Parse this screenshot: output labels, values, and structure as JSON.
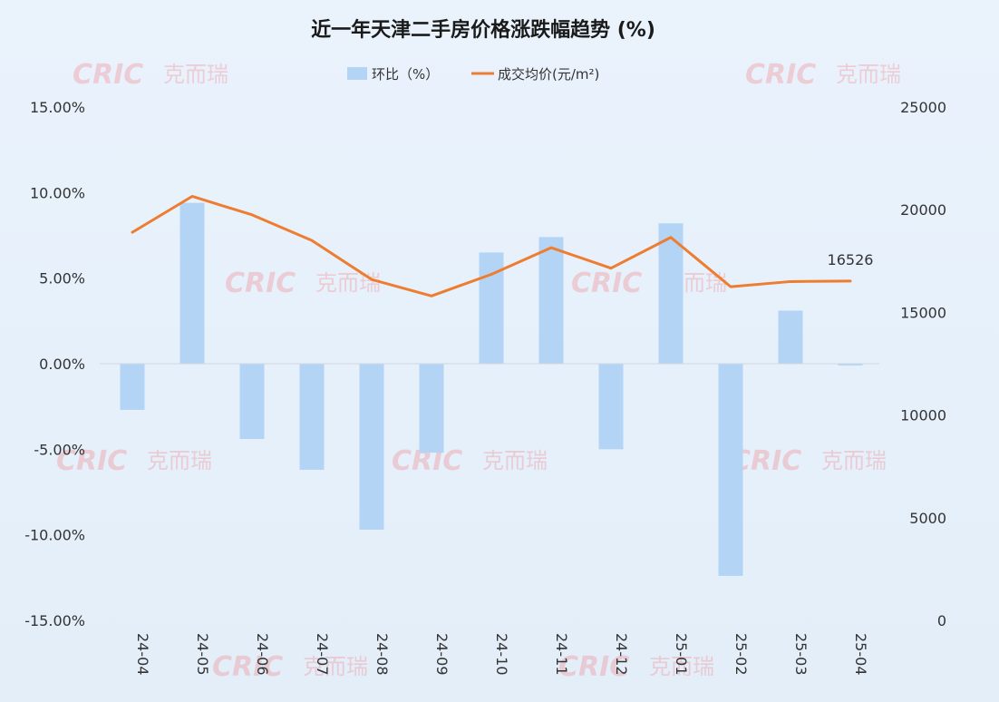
{
  "chart_data": {
    "type": "bar",
    "title": "近一年天津二手房价格涨跌幅趋势 (%)",
    "categories": [
      "24-04",
      "24-05",
      "24-06",
      "24-07",
      "24-08",
      "24-09",
      "24-10",
      "24-11",
      "24-12",
      "25-01",
      "25-02",
      "25-03",
      "25-04"
    ],
    "series": [
      {
        "name": "环比（%）",
        "type": "bar",
        "axis": "left",
        "color": "#b3d4f5",
        "values": [
          -2.7,
          9.4,
          -4.4,
          -6.2,
          -9.7,
          -5.2,
          6.5,
          7.4,
          -5.0,
          8.2,
          -12.4,
          3.1,
          -0.1
        ]
      },
      {
        "name": "成交均价(元/m²)",
        "type": "line",
        "axis": "right",
        "color": "#ed7d31",
        "values": [
          18900,
          20650,
          19750,
          18500,
          16600,
          15800,
          16850,
          18150,
          17150,
          18650,
          16250,
          16500,
          16526
        ]
      }
    ],
    "left_axis": {
      "ticks": [
        "15.00%",
        "10.00%",
        "5.00%",
        "0.00%",
        "-5.00%",
        "-10.00%",
        "-15.00%"
      ],
      "range": [
        -15,
        15
      ]
    },
    "right_axis": {
      "ticks": [
        "25000",
        "20000",
        "15000",
        "10000",
        "5000",
        "0"
      ],
      "range": [
        0,
        25000
      ]
    },
    "data_labels": [
      {
        "series": 1,
        "index": 12,
        "text": "16526"
      }
    ],
    "legend_position": "top-center",
    "grid": false
  },
  "watermark": {
    "latin": "CRIC",
    "chinese": "克而瑞"
  }
}
